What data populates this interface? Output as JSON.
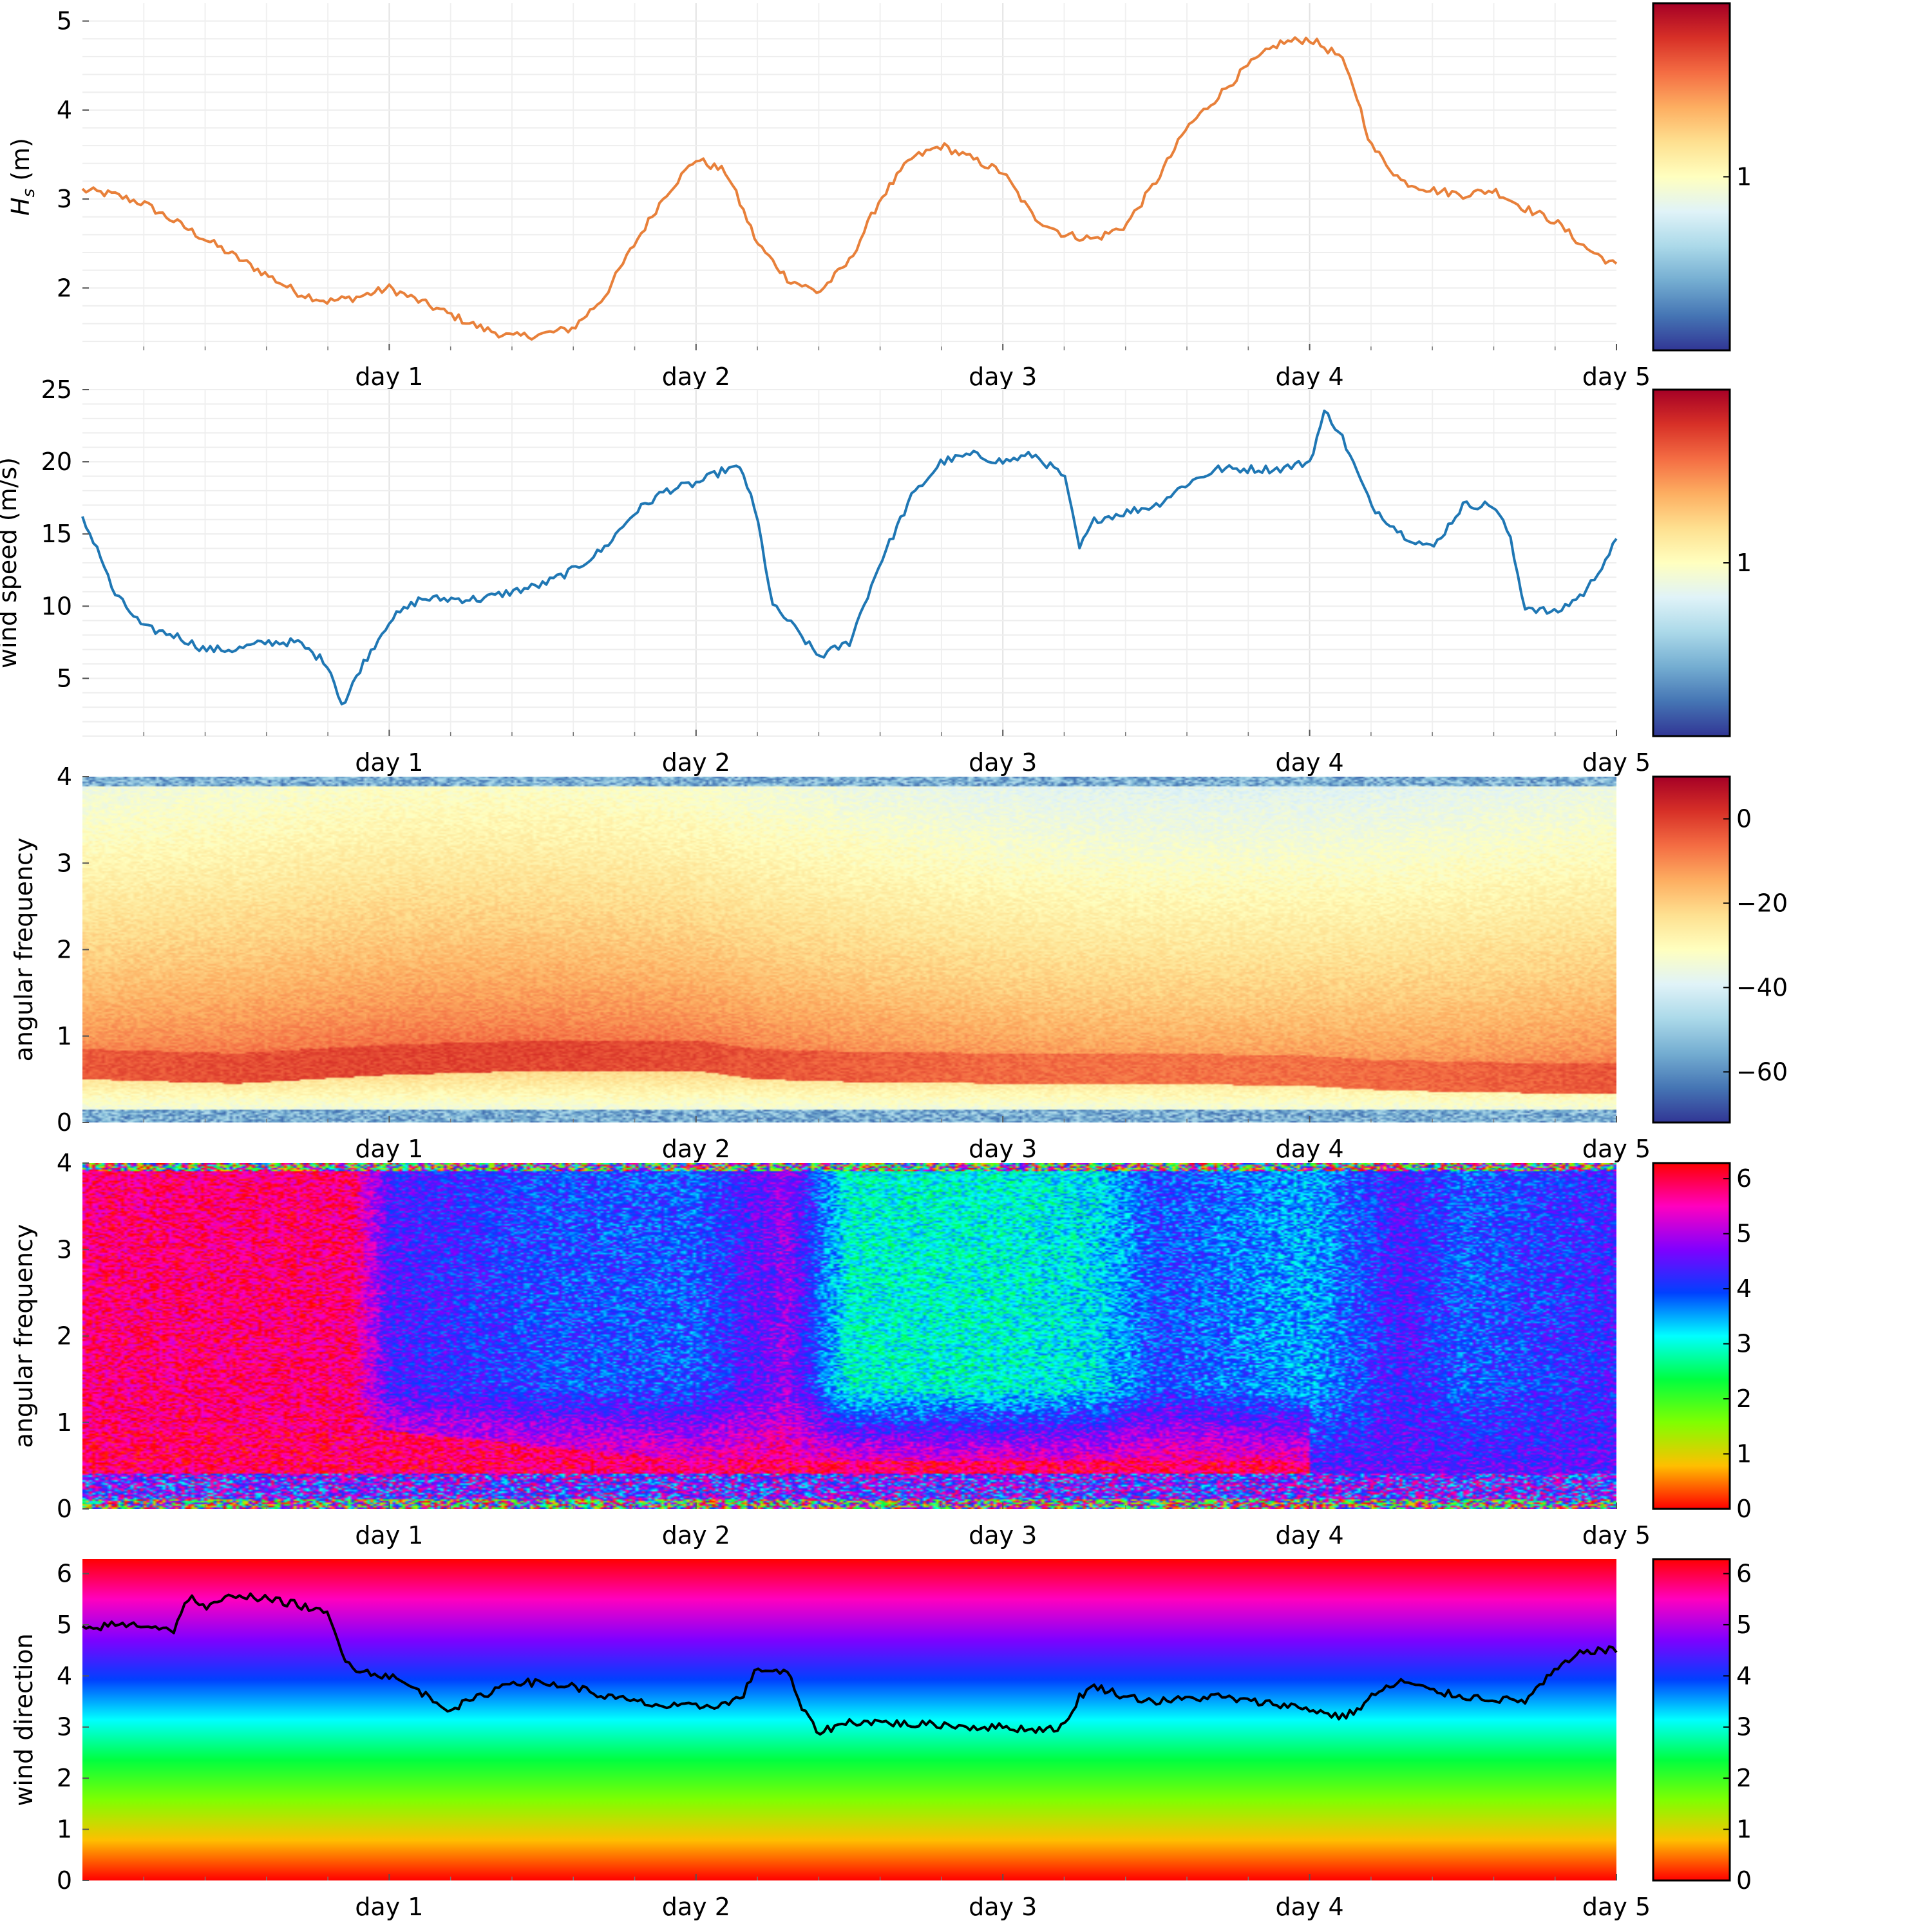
{
  "chart_data": [
    {
      "type": "line",
      "ylabel": "H_s (m)",
      "ylabel_main": "H",
      "ylabel_sub": "s",
      "ylabel_unit": " (m)",
      "x_ticks": [
        "day 1",
        "day 2",
        "day 3",
        "day 4",
        "day 5"
      ],
      "xlim": [
        0,
        5
      ],
      "ylim": [
        1.3,
        5.2
      ],
      "y_ticks": [
        "2",
        "3",
        "4",
        "5"
      ],
      "grid": true,
      "line_color": "#e8803a",
      "x": [
        0,
        0.1,
        0.2,
        0.3,
        0.4,
        0.5,
        0.6,
        0.7,
        0.8,
        0.9,
        1.0,
        1.1,
        1.2,
        1.3,
        1.4,
        1.5,
        1.6,
        1.7,
        1.8,
        1.9,
        2.0,
        2.1,
        2.15,
        2.2,
        2.3,
        2.4,
        2.5,
        2.6,
        2.7,
        2.8,
        2.9,
        3.0,
        3.1,
        3.2,
        3.3,
        3.4,
        3.5,
        3.6,
        3.7,
        3.8,
        3.9,
        4.0,
        4.1,
        4.15,
        4.2,
        4.3,
        4.4,
        4.5,
        4.6,
        4.7,
        4.8,
        4.9,
        5.0
      ],
      "values": [
        3.1,
        3.05,
        2.95,
        2.75,
        2.55,
        2.35,
        2.15,
        1.95,
        1.85,
        1.9,
        2.0,
        1.85,
        1.7,
        1.55,
        1.45,
        1.48,
        1.55,
        1.9,
        2.5,
        3.05,
        3.45,
        3.3,
        2.9,
        2.5,
        2.1,
        1.95,
        2.3,
        3.0,
        3.45,
        3.6,
        3.45,
        3.3,
        2.8,
        2.6,
        2.55,
        2.7,
        3.2,
        3.8,
        4.15,
        4.5,
        4.75,
        4.8,
        4.6,
        4.2,
        3.6,
        3.2,
        3.1,
        3.05,
        3.1,
        2.9,
        2.75,
        2.45,
        2.25
      ],
      "colorbar": {
        "cmap": "RdYlBu_r",
        "ticks": [
          "1"
        ]
      }
    },
    {
      "type": "line",
      "ylabel": "wind speed (m/s)",
      "x_ticks": [
        "day 1",
        "day 2",
        "day 3",
        "day 4",
        "day 5"
      ],
      "xlim": [
        0,
        5
      ],
      "ylim": [
        1,
        25
      ],
      "y_ticks": [
        "5",
        "10",
        "15",
        "20",
        "25"
      ],
      "grid": true,
      "line_color": "#1f77b4",
      "x": [
        0,
        0.05,
        0.1,
        0.2,
        0.3,
        0.4,
        0.5,
        0.6,
        0.7,
        0.8,
        0.85,
        0.9,
        1.0,
        1.1,
        1.2,
        1.3,
        1.4,
        1.5,
        1.6,
        1.7,
        1.8,
        1.9,
        2.0,
        2.1,
        2.15,
        2.2,
        2.25,
        2.3,
        2.4,
        2.5,
        2.6,
        2.7,
        2.8,
        2.9,
        3.0,
        3.1,
        3.2,
        3.25,
        3.3,
        3.4,
        3.5,
        3.6,
        3.7,
        3.8,
        3.9,
        4.0,
        4.05,
        4.1,
        4.2,
        4.3,
        4.4,
        4.5,
        4.6,
        4.65,
        4.7,
        4.8,
        4.9,
        5.0
      ],
      "values": [
        16,
        14,
        11,
        8.5,
        8,
        7,
        7,
        7.5,
        7.5,
        6,
        3,
        5.5,
        9,
        10.5,
        10.5,
        10.5,
        11,
        11.5,
        12.5,
        14,
        16.5,
        18,
        18.5,
        19.5,
        19.5,
        16,
        10,
        9,
        6.5,
        7.5,
        13,
        17.5,
        20,
        20.5,
        20,
        20.5,
        19,
        14,
        16,
        16.5,
        17,
        18.5,
        19.5,
        19.5,
        19.5,
        20,
        23.5,
        22,
        17,
        15,
        14,
        17,
        17,
        15,
        10,
        9.5,
        11,
        14.5
      ],
      "colorbar": {
        "cmap": "RdYlBu_r",
        "ticks": [
          "1"
        ]
      }
    },
    {
      "type": "heatmap",
      "ylabel": "angular frequency",
      "x_ticks": [
        "day 1",
        "day 2",
        "day 3",
        "day 4",
        "day 5"
      ],
      "xlim": [
        0,
        5
      ],
      "ylim": [
        0,
        4
      ],
      "y_ticks": [
        "0",
        "1",
        "2",
        "3",
        "4"
      ],
      "cmap": "RdYlBu_r",
      "value_range": [
        -72,
        10
      ],
      "peak_frequency_x": [
        0,
        0.5,
        1.0,
        1.5,
        2.0,
        2.2,
        2.5,
        3.0,
        3.5,
        4.0,
        4.2,
        4.5,
        5.0
      ],
      "peak_frequency_y": [
        0.75,
        0.7,
        0.8,
        0.85,
        0.85,
        0.75,
        0.72,
        0.7,
        0.7,
        0.67,
        0.63,
        0.6,
        0.58
      ],
      "colorbar": {
        "cmap": "RdYlBu_r",
        "ticks": [
          "0",
          "−20",
          "−40",
          "−60"
        ],
        "range": [
          -72,
          10
        ]
      }
    },
    {
      "type": "heatmap",
      "ylabel": "angular frequency",
      "x_ticks": [
        "day 1",
        "day 2",
        "day 3",
        "day 4",
        "day 5"
      ],
      "xlim": [
        0,
        5
      ],
      "ylim": [
        0,
        4
      ],
      "y_ticks": [
        "0",
        "1",
        "2",
        "3",
        "4"
      ],
      "cmap": "hsv",
      "value_range": [
        0,
        6.2832
      ],
      "direction_field_x": [
        0,
        0.5,
        0.9,
        1.0,
        1.5,
        2.0,
        2.3,
        2.5,
        3.0,
        3.3,
        3.5,
        4.0,
        4.3,
        4.5,
        5.0
      ],
      "direction_field_high_freq": [
        5.3,
        5.8,
        5.6,
        4.4,
        4.0,
        3.9,
        4.8,
        3.0,
        3.0,
        3.2,
        4.0,
        3.5,
        4.4,
        3.9,
        4.3
      ],
      "colorbar": {
        "cmap": "hsv",
        "ticks": [
          "0",
          "1",
          "2",
          "3",
          "4",
          "5",
          "6"
        ],
        "range": [
          0,
          6.2832
        ]
      }
    },
    {
      "type": "line",
      "ylabel": "wind direction",
      "x_ticks": [
        "day 1",
        "day 2",
        "day 3",
        "day 4",
        "day 5"
      ],
      "xlim": [
        0,
        5
      ],
      "ylim": [
        0,
        6.2832
      ],
      "y_ticks": [
        "0",
        "1",
        "2",
        "3",
        "4",
        "5",
        "6"
      ],
      "line_color": "#000000",
      "background_cmap": "hsv",
      "x": [
        0,
        0.1,
        0.2,
        0.3,
        0.35,
        0.4,
        0.5,
        0.6,
        0.7,
        0.8,
        0.85,
        0.9,
        1.0,
        1.1,
        1.15,
        1.2,
        1.3,
        1.4,
        1.5,
        1.6,
        1.7,
        1.8,
        1.9,
        2.0,
        2.1,
        2.15,
        2.2,
        2.3,
        2.35,
        2.4,
        2.5,
        2.6,
        2.7,
        2.8,
        2.9,
        3.0,
        3.1,
        3.2,
        3.25,
        3.3,
        3.4,
        3.5,
        3.6,
        3.7,
        3.8,
        3.9,
        4.0,
        4.1,
        4.15,
        4.2,
        4.3,
        4.4,
        4.5,
        4.6,
        4.7,
        4.8,
        4.9,
        5.0
      ],
      "values": [
        4.9,
        5.0,
        5.0,
        4.9,
        5.6,
        5.3,
        5.6,
        5.5,
        5.4,
        5.2,
        4.4,
        4.1,
        4.0,
        3.7,
        3.5,
        3.35,
        3.6,
        3.9,
        3.85,
        3.8,
        3.6,
        3.5,
        3.4,
        3.4,
        3.45,
        3.6,
        4.15,
        4.05,
        3.3,
        2.9,
        3.1,
        3.1,
        3.05,
        3.05,
        3.0,
        3.0,
        2.95,
        3.0,
        3.6,
        3.8,
        3.6,
        3.5,
        3.55,
        3.6,
        3.5,
        3.45,
        3.35,
        3.2,
        3.3,
        3.6,
        3.9,
        3.7,
        3.6,
        3.55,
        3.5,
        4.1,
        4.5,
        4.5
      ],
      "colorbar": {
        "cmap": "hsv",
        "ticks": [
          "0",
          "1",
          "2",
          "3",
          "4",
          "5",
          "6"
        ],
        "range": [
          0,
          6.2832
        ]
      }
    }
  ]
}
